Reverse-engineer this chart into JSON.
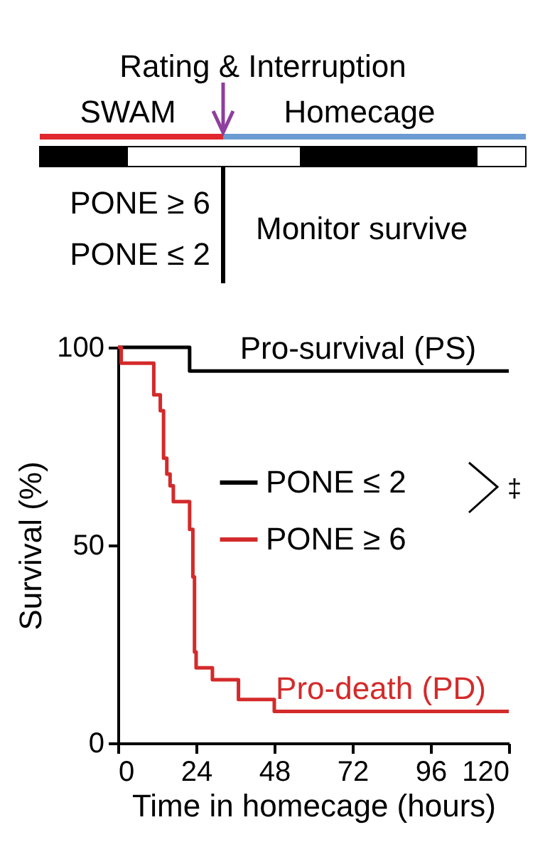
{
  "chart_data": {
    "type": "step",
    "xlabel": "Time in homecage (hours)",
    "ylabel": "Survival (%)",
    "xlim": [
      0,
      120
    ],
    "xticks": [
      0,
      24,
      48,
      72,
      96,
      120
    ],
    "ylim": [
      0,
      100
    ],
    "yticks": [
      0,
      50,
      100
    ],
    "grid": false,
    "legend": "left",
    "marker": "none",
    "line_style": "solid",
    "annotations": [
      "Rating & Interruption",
      "SWAM",
      "Homecage",
      "PONE ≥ 6",
      "PONE ≤ 2",
      "Monitor survive",
      "‡",
      "Pro-survival (PS)",
      "Pro-death (PD)"
    ],
    "series": [
      {
        "name": "PONE ≤ 2",
        "color": "#000000",
        "x": [
          0,
          22,
          120
        ],
        "values": [
          100,
          94,
          94
        ]
      },
      {
        "name": "PONE ≥ 6",
        "color": "#d42a2a",
        "x": [
          0,
          1,
          11,
          13,
          14,
          15,
          16,
          17,
          22,
          23,
          23.5,
          24,
          29,
          37,
          48,
          120
        ],
        "values": [
          100,
          96,
          88,
          84,
          72,
          68,
          65,
          61,
          54,
          42,
          23,
          19,
          16,
          11,
          8,
          8
        ]
      }
    ]
  }
}
